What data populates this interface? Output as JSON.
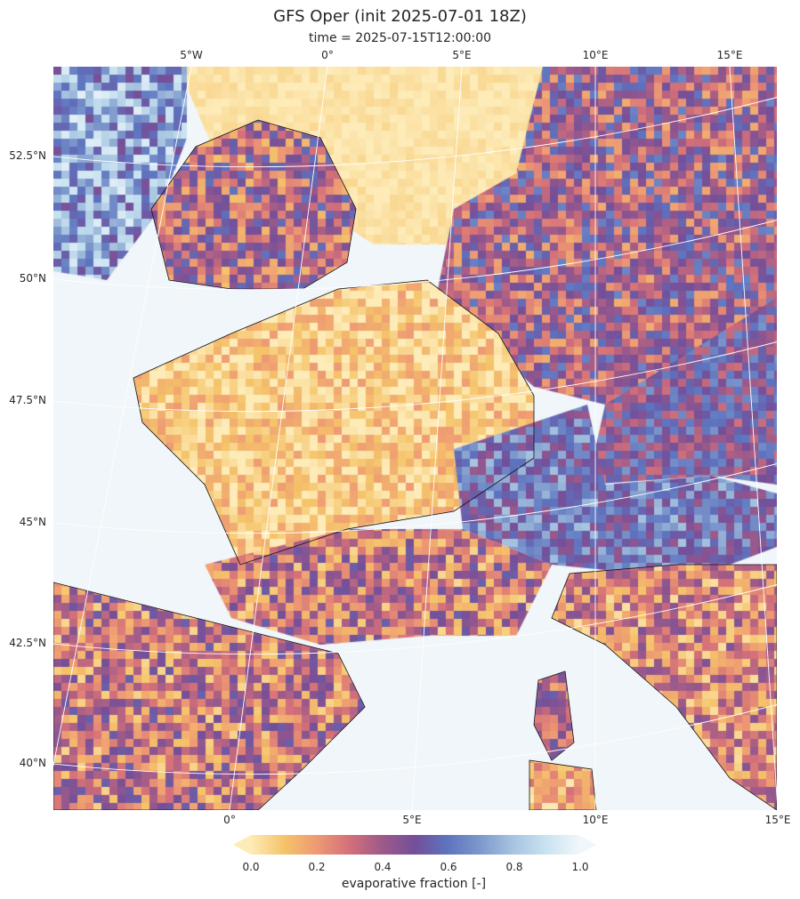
{
  "title": "GFS Oper (init 2025-07-01 18Z)",
  "subtitle": "time = 2025-07-15T12:00:00",
  "map": {
    "projection": "lambert-conformal",
    "top_lon_labels": [
      "5°W",
      "0°",
      "5°E",
      "10°E",
      "15°E"
    ],
    "bottom_lon_labels": [
      "0°",
      "5°E",
      "10°E",
      "15°E"
    ],
    "lat_labels": [
      "52.5°N",
      "50°N",
      "47.5°N",
      "45°N",
      "42.5°N",
      "40°N"
    ],
    "gridlines": true,
    "coastlines": true
  },
  "colorbar": {
    "label": "evaporative fraction [-]",
    "ticks": [
      "0.0",
      "0.2",
      "0.4",
      "0.6",
      "0.8",
      "1.0"
    ],
    "range": [
      0,
      1
    ],
    "extend": "both",
    "colors": [
      "#fdebb8",
      "#f5c46a",
      "#ee9a73",
      "#d47079",
      "#9d5a8a",
      "#744f99",
      "#5e73bf",
      "#7d98cc",
      "#a7c4e0",
      "#c8e2f0",
      "#f0f6fa"
    ]
  }
}
